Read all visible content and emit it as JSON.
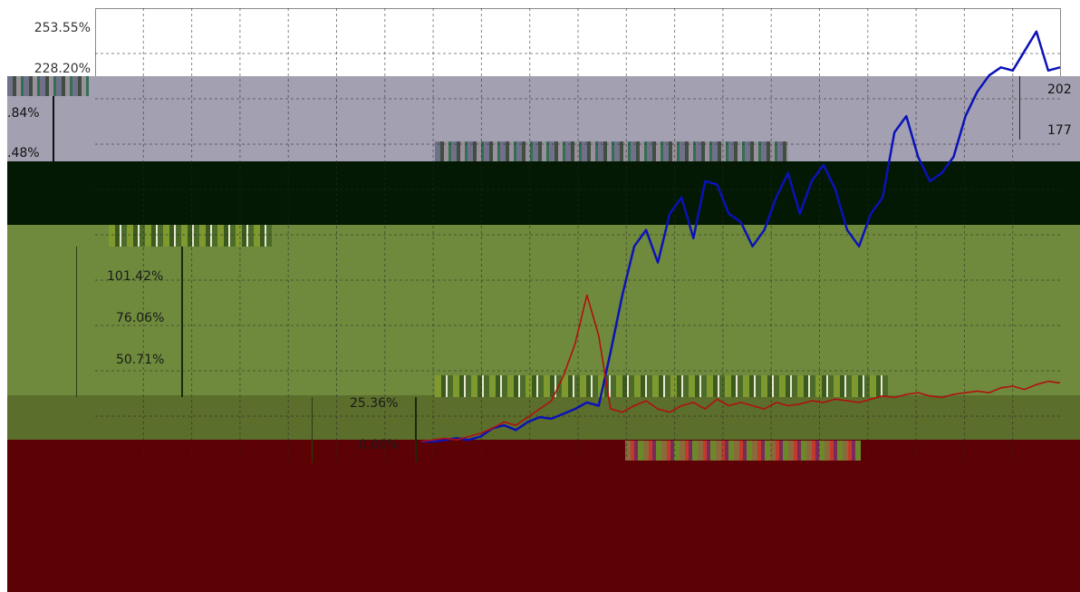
{
  "chart_data": {
    "type": "line",
    "title": "",
    "xlabel": "",
    "ylabel": "",
    "y_ticks_upper_panel": [
      "253.55%",
      "228.20%",
      "202",
      "177"
    ],
    "y_ticks_left_fragments": [
      ".84%",
      ".48%"
    ],
    "y_ticks_middle_panel": [
      "101.42%",
      "76.06%",
      "50.71%"
    ],
    "y_ticks_lower_panel": [
      "25.36%",
      "0.00%"
    ],
    "ylim": [
      0,
      253.55
    ],
    "grid": true,
    "series": [
      {
        "color": "#0b12b8",
        "values": [
          0,
          0,
          1,
          2,
          1,
          3,
          8,
          10,
          7,
          12,
          15,
          14,
          17,
          20,
          24,
          22,
          55,
          90,
          120,
          130,
          110,
          140,
          150,
          125,
          160,
          158,
          140,
          135,
          120,
          130,
          150,
          165,
          140,
          160,
          170,
          155,
          130,
          120,
          140,
          150,
          190,
          200,
          175,
          160,
          165,
          175,
          200,
          215,
          225,
          230,
          228,
          240,
          252,
          228,
          230
        ]
      },
      {
        "color": "#b01010",
        "values": [
          0,
          1,
          2,
          1,
          3,
          5,
          8,
          12,
          10,
          15,
          20,
          25,
          40,
          60,
          90,
          65,
          20,
          18,
          22,
          25,
          20,
          18,
          22,
          24,
          20,
          26,
          22,
          24,
          22,
          20,
          24,
          22,
          23,
          25,
          24,
          26,
          25,
          24,
          26,
          28,
          27,
          29,
          30,
          28,
          27,
          29,
          30,
          31,
          30,
          33,
          34,
          32,
          35,
          37,
          36
        ]
      }
    ]
  }
}
